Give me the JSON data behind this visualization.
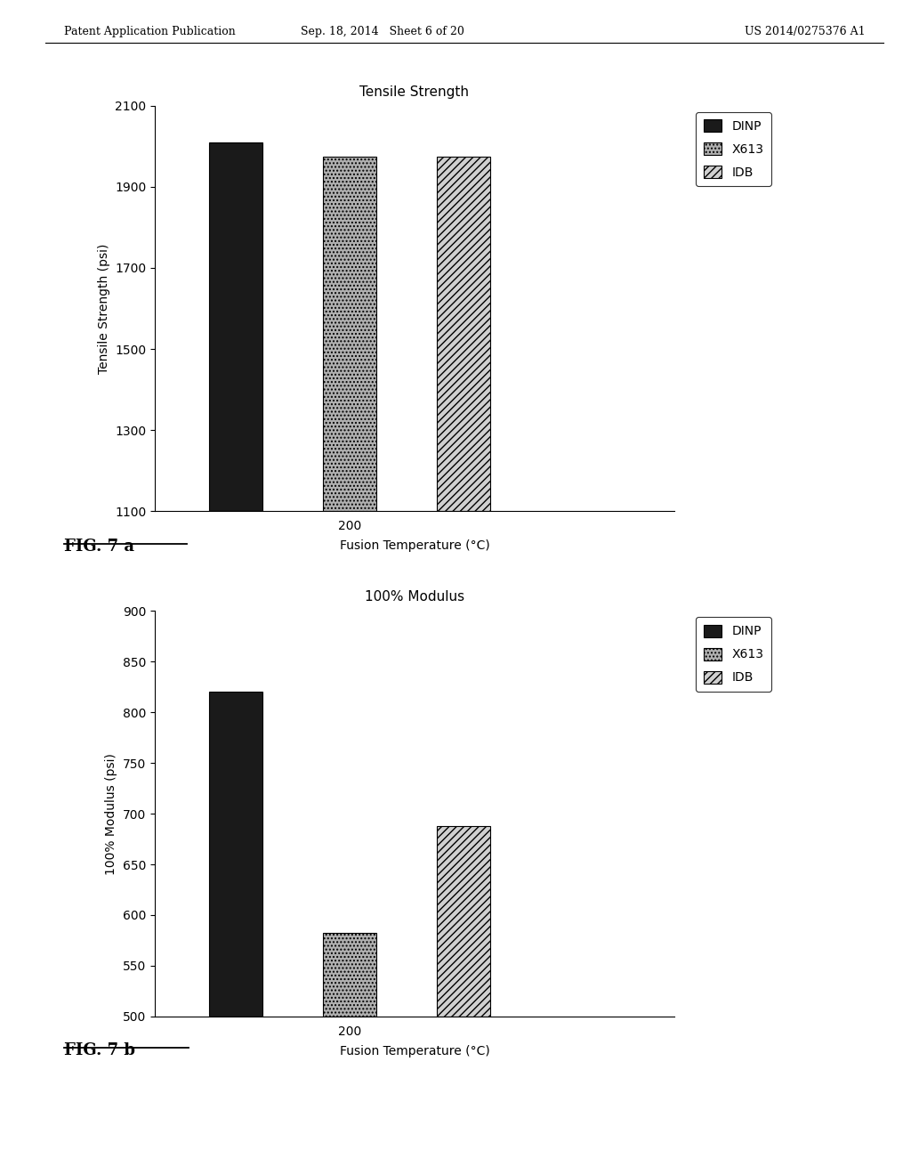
{
  "chart1": {
    "title": "Tensile Strength",
    "ylabel": "Tensile Strength (psi)",
    "xlabel": "Fusion Temperature (°C)",
    "x_tick_label": "200",
    "ylim": [
      1100,
      2100
    ],
    "yticks": [
      1100,
      1300,
      1500,
      1700,
      1900,
      2100
    ],
    "bars": [
      {
        "label": "DINP",
        "value": 2010,
        "color": "#1a1a1a",
        "hatch": null
      },
      {
        "label": "X613",
        "value": 1975,
        "color": "#b0b0b0",
        "hatch": "...."
      },
      {
        "label": "IDB",
        "value": 1975,
        "color": "#d0d0d0",
        "hatch": "////"
      }
    ]
  },
  "chart2": {
    "title": "100% Modulus",
    "ylabel": "100% Modulus (psi)",
    "xlabel": "Fusion Temperature (°C)",
    "x_tick_label": "200",
    "ylim": [
      500,
      900
    ],
    "yticks": [
      500,
      550,
      600,
      650,
      700,
      750,
      800,
      850,
      900
    ],
    "bars": [
      {
        "label": "DINP",
        "value": 820,
        "color": "#1a1a1a",
        "hatch": null
      },
      {
        "label": "X613",
        "value": 582,
        "color": "#b0b0b0",
        "hatch": "...."
      },
      {
        "label": "IDB",
        "value": 688,
        "color": "#d0d0d0",
        "hatch": "////"
      }
    ]
  },
  "header_left": "Patent Application Publication",
  "header_center": "Sep. 18, 2014   Sheet 6 of 20",
  "header_right": "US 2014/0275376 A1",
  "fig7a_label": "FIG. 7 a",
  "fig7b_label": "FIG. 7 b",
  "background_color": "#ffffff",
  "legend_labels": [
    "DINP",
    "X613",
    "IDB"
  ],
  "legend_hatches": [
    null,
    "....",
    "////"
  ],
  "legend_colors": [
    "#1a1a1a",
    "#b0b0b0",
    "#d0d0d0"
  ]
}
